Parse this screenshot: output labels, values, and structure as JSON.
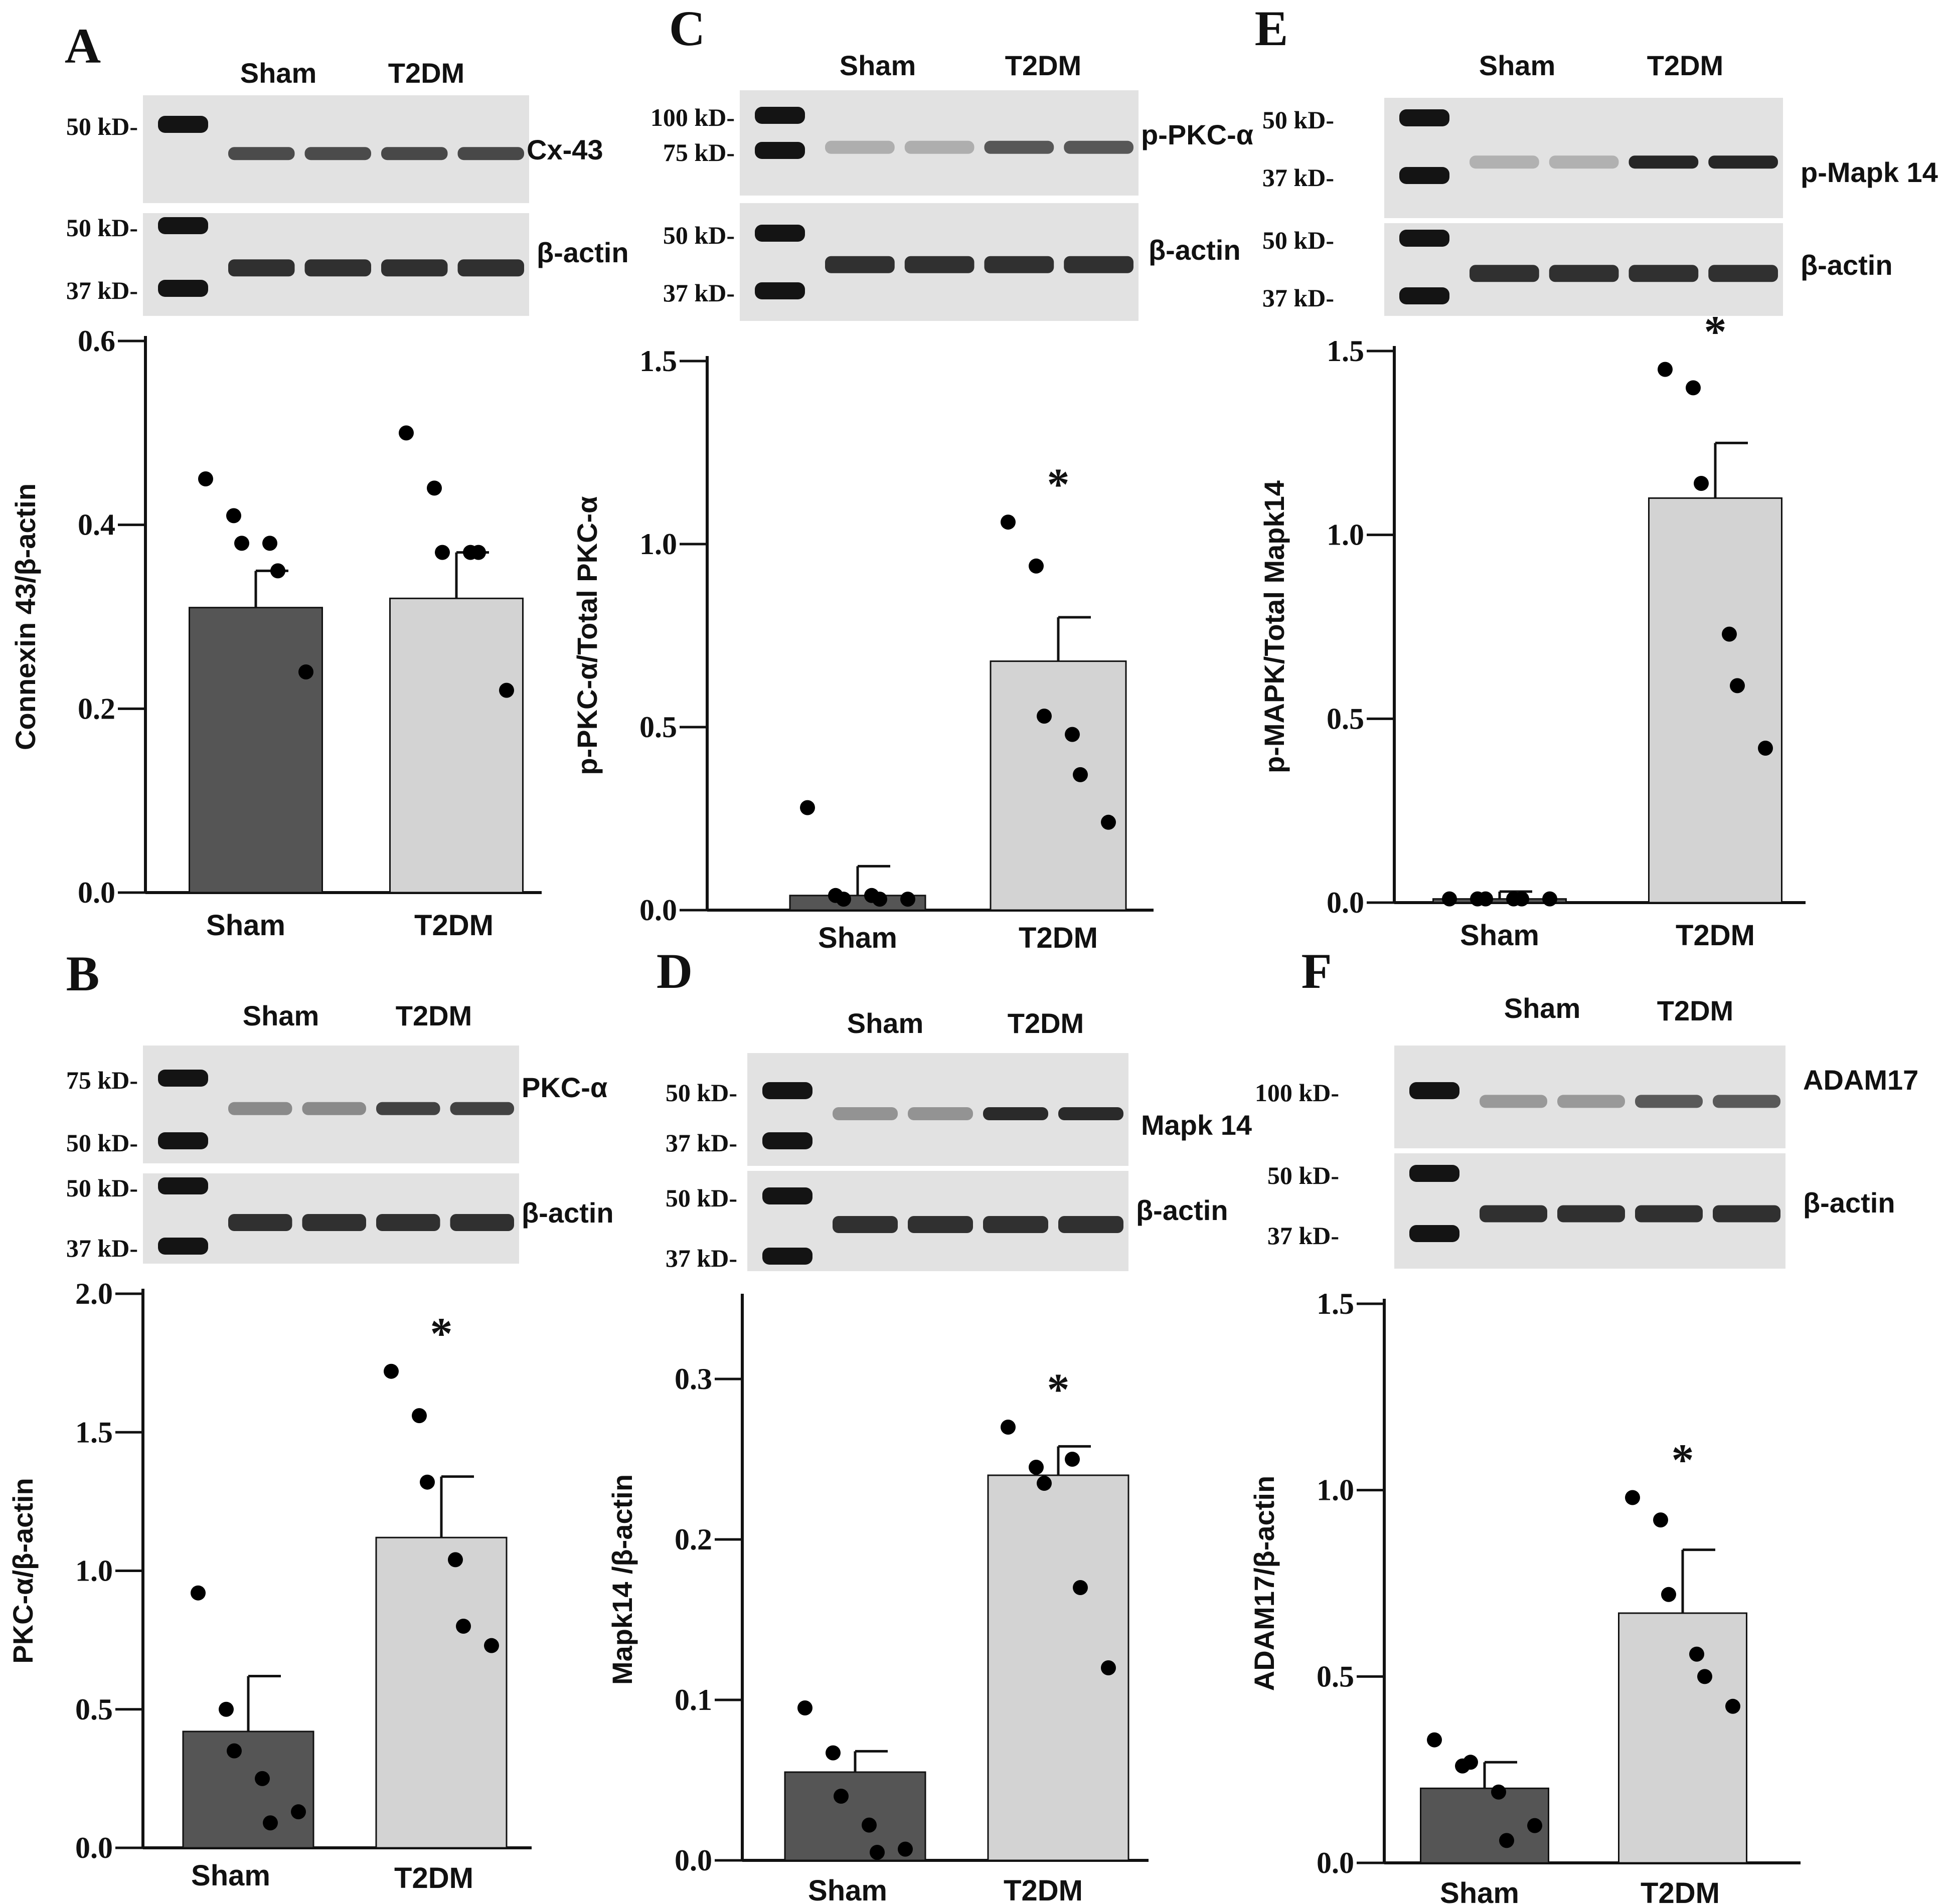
{
  "colors": {
    "sham": "#555555",
    "t2dm": "#d3d3d3",
    "axis": "#111111",
    "dot": "#000000",
    "blot_bg": "#e2e2e2",
    "band": "#262626",
    "ladder": "#141414"
  },
  "panels": [
    {
      "id": "A",
      "letter": "A",
      "blots": [
        {
          "label": "Cx-43",
          "markers": [
            "50 kD-"
          ]
        },
        {
          "label": "β-actin",
          "markers": [
            "50 kD-",
            "37 kD-"
          ]
        }
      ],
      "blot_groups": [
        "Sham",
        "T2DM"
      ],
      "chart_data": {
        "type": "bar",
        "categories": [
          "Sham",
          "T2DM"
        ],
        "values": [
          0.31,
          0.32
        ],
        "errors": [
          0.04,
          0.05
        ],
        "points": [
          [
            0.45,
            0.41,
            0.38,
            0.38,
            0.35,
            0.24
          ],
          [
            0.5,
            0.44,
            0.37,
            0.37,
            0.37,
            0.22
          ]
        ],
        "ylabel": "Connexin 43/β-actin",
        "ylim": [
          0,
          0.6
        ],
        "yticks": [
          "0.0",
          "0.2",
          "0.4",
          "0.6"
        ],
        "significance": [
          "",
          ""
        ]
      }
    },
    {
      "id": "B",
      "letter": "B",
      "blots": [
        {
          "label": "PKC-α",
          "markers": [
            "75 kD-",
            "50 kD-"
          ]
        },
        {
          "label": "β-actin",
          "markers": [
            "50 kD-",
            "37 kD-"
          ]
        }
      ],
      "blot_groups": [
        "Sham",
        "T2DM"
      ],
      "chart_data": {
        "type": "bar",
        "categories": [
          "Sham",
          "T2DM"
        ],
        "values": [
          0.42,
          1.12
        ],
        "errors": [
          0.2,
          0.22
        ],
        "points": [
          [
            0.92,
            0.5,
            0.35,
            0.25,
            0.09,
            0.13
          ],
          [
            1.72,
            1.56,
            1.32,
            1.04,
            0.8,
            0.73
          ]
        ],
        "ylabel": "PKC-α/β-actin",
        "ylim": [
          0,
          2.0
        ],
        "yticks": [
          "0.0",
          "0.5",
          "1.0",
          "1.5",
          "2.0"
        ],
        "significance": [
          "",
          "*"
        ]
      }
    },
    {
      "id": "C",
      "letter": "C",
      "blots": [
        {
          "label": "p-PKC-α",
          "markers": [
            "100 kD-",
            "75 kD-"
          ]
        },
        {
          "label": "β-actin",
          "markers": [
            "50 kD-",
            "37 kD-"
          ]
        }
      ],
      "blot_groups": [
        "Sham",
        "T2DM"
      ],
      "chart_data": {
        "type": "bar",
        "categories": [
          "Sham",
          "T2DM"
        ],
        "values": [
          0.04,
          0.68
        ],
        "errors": [
          0.08,
          0.12
        ],
        "points": [
          [
            0.28,
            0.04,
            0.03,
            0.04,
            0.03,
            0.03
          ],
          [
            1.06,
            0.94,
            0.53,
            0.48,
            0.37,
            0.24
          ]
        ],
        "ylabel": "p-PKC-α/Total PKC-α",
        "ylim": [
          0,
          1.5
        ],
        "yticks": [
          "0.0",
          "0.5",
          "1.0",
          "1.5"
        ],
        "significance": [
          "",
          "*"
        ]
      }
    },
    {
      "id": "D",
      "letter": "D",
      "blots": [
        {
          "label": "Mapk 14",
          "markers": [
            "50 kD-",
            "37 kD-"
          ]
        },
        {
          "label": "β-actin",
          "markers": [
            "50 kD-",
            "37 kD-"
          ]
        }
      ],
      "blot_groups": [
        "Sham",
        "T2DM"
      ],
      "chart_data": {
        "type": "bar",
        "categories": [
          "Sham",
          "T2DM"
        ],
        "values": [
          0.055,
          0.24
        ],
        "errors": [
          0.013,
          0.018
        ],
        "points": [
          [
            0.095,
            0.067,
            0.04,
            0.022,
            0.005,
            0.007
          ],
          [
            0.27,
            0.245,
            0.235,
            0.25,
            0.17,
            0.12
          ]
        ],
        "ylabel": "Mapk14 /β-actin",
        "ylim": [
          0,
          0.35
        ],
        "yticks": [
          "0.0",
          "0.1",
          "0.2",
          "0.3"
        ],
        "significance": [
          "",
          "*"
        ]
      }
    },
    {
      "id": "E",
      "letter": "E",
      "blots": [
        {
          "label": "p-Mapk 14",
          "markers": [
            "50 kD-",
            "37 kD-"
          ]
        },
        {
          "label": "β-actin",
          "markers": [
            "50 kD-",
            "37 kD-"
          ]
        }
      ],
      "blot_groups": [
        "Sham",
        "T2DM"
      ],
      "chart_data": {
        "type": "bar",
        "categories": [
          "Sham",
          "T2DM"
        ],
        "values": [
          0.01,
          1.1
        ],
        "errors": [
          0.02,
          0.15
        ],
        "points": [
          [
            0.01,
            0.01,
            0.01,
            0.01,
            0.01,
            0.01
          ],
          [
            1.45,
            1.4,
            1.14,
            0.73,
            0.59,
            0.42
          ]
        ],
        "ylabel": "p-MAPK/Total Mapk14",
        "ylim": [
          0,
          1.5
        ],
        "yticks": [
          "0.0",
          "0.5",
          "1.0",
          "1.5"
        ],
        "significance": [
          "",
          "*"
        ]
      }
    },
    {
      "id": "F",
      "letter": "F",
      "blots": [
        {
          "label": "ADAM17",
          "markers": [
            "100 kD-"
          ]
        },
        {
          "label": "β-actin",
          "markers": [
            "50 kD-",
            "37 kD-"
          ]
        }
      ],
      "blot_groups": [
        "Sham",
        "T2DM"
      ],
      "chart_data": {
        "type": "bar",
        "categories": [
          "Sham",
          "T2DM"
        ],
        "values": [
          0.2,
          0.67
        ],
        "errors": [
          0.07,
          0.17
        ],
        "points": [
          [
            0.33,
            0.26,
            0.27,
            0.19,
            0.06,
            0.1
          ],
          [
            0.98,
            0.92,
            0.72,
            0.56,
            0.5,
            0.42
          ]
        ],
        "ylabel": "ADAM17/β-actin",
        "ylim": [
          0,
          1.5
        ],
        "yticks": [
          "0.0",
          "0.5",
          "1.0",
          "1.5"
        ],
        "significance": [
          "",
          "*"
        ]
      }
    }
  ]
}
